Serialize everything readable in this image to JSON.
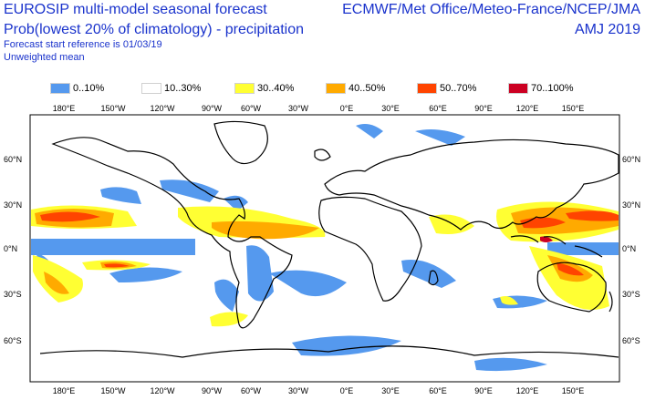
{
  "header": {
    "title_line1": "EUROSIP multi-model seasonal forecast",
    "title_line2": "Prob(lowest 20% of climatology) - precipitation",
    "start_reference": "Forecast start reference is 01/03/19",
    "mean_type": "Unweighted mean",
    "organizations": "ECMWF/Met Office/Meteo-France/NCEP/JMA",
    "period": "AMJ 2019"
  },
  "legend": [
    {
      "label": "0..10%",
      "color": "#5599ee"
    },
    {
      "label": "10..30%",
      "color": "#ffffff"
    },
    {
      "label": "30..40%",
      "color": "#ffff33"
    },
    {
      "label": "40..50%",
      "color": "#ffaa00"
    },
    {
      "label": "50..70%",
      "color": "#ff4400"
    },
    {
      "label": "70..100%",
      "color": "#cc0022"
    }
  ],
  "axes": {
    "lon_labels": [
      "180°E",
      "150°W",
      "120°W",
      "90°W",
      "60°W",
      "30°W",
      "0°E",
      "30°E",
      "60°E",
      "90°E",
      "120°E",
      "150°E"
    ],
    "lat_labels": [
      "60°N",
      "30°N",
      "0°N",
      "30°S",
      "60°S"
    ]
  }
}
